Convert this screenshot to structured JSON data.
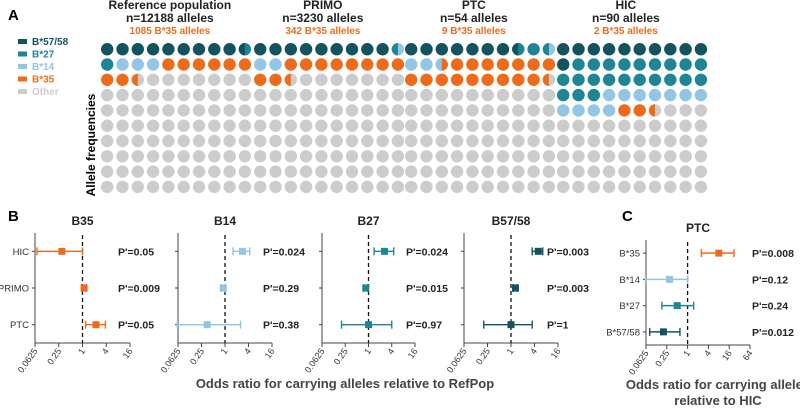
{
  "panel_a": {
    "letter": "A",
    "ylabel": "Allele frequencies",
    "legend": [
      {
        "label": "B*57/58",
        "color": "#13535f"
      },
      {
        "label": "B*27",
        "color": "#1d8596"
      },
      {
        "label": "B*14",
        "color": "#92c5e6"
      },
      {
        "label": "B*35",
        "color": "#ef6b1c"
      },
      {
        "label": "Other",
        "color": "#cccccc"
      }
    ],
    "grids": [
      {
        "title": "Reference population",
        "n": "n=12188 alleles",
        "b35": "1085 B*35 alleles",
        "counts": {
          "B*57/58": 9.5,
          "B*27": 1.5,
          "B*14": 3,
          "B*35": 8.9
        }
      },
      {
        "title": "PRIMO",
        "n": "n=3230 alleles",
        "b35": "342 B*35 alleles",
        "counts": {
          "B*57/58": 9,
          "B*27": 0.5,
          "B*14": 2.5,
          "B*35": 10.6
        }
      },
      {
        "title": "PTC",
        "n": "n=54 alleles",
        "b35": "9 B*35 alleles",
        "counts": {
          "B*57/58": 7.5,
          "B*27": 2,
          "B*14": 3,
          "B*35": 16.7
        }
      },
      {
        "title": "HIC",
        "n": "n=90 alleles",
        "b35": "2 B*35 alleles",
        "counts": {
          "B*57/58": 11,
          "B*27": 22,
          "B*14": 11,
          "B*35": 2.2
        }
      }
    ]
  },
  "panel_b": {
    "letter": "B",
    "xlabel": "Odds ratio for carrying alleles relative to RefPop"
  },
  "panel_c": {
    "letter": "C",
    "xlabel_line1": "Odds ratio for carrying alleles",
    "xlabel_line2": "relative to HIC"
  },
  "chart_data": [
    {
      "type": "scatter",
      "title": "B35",
      "categories": [
        "HIC",
        "PRIMO",
        "PTC"
      ],
      "x_scale": "log2",
      "xticks": [
        "0.0625",
        "0.25",
        "1",
        "4",
        "16"
      ],
      "xlim": [
        0.0625,
        16
      ],
      "color": "#ef6b1c",
      "series": [
        {
          "values": [
            0.3,
            1.1,
            2.2
          ],
          "ci_low": [
            0.07,
            0.95,
            1.2
          ],
          "ci_high": [
            1.0,
            1.25,
            3.8
          ]
        }
      ],
      "annotations": [
        "P'=0.05",
        "P'=0.009",
        "P'=0.05"
      ]
    },
    {
      "type": "scatter",
      "title": "B14",
      "categories": [
        "HIC",
        "PRIMO",
        "PTC"
      ],
      "x_scale": "log2",
      "xticks": [
        "0.0625",
        "0.25",
        "1",
        "4",
        "16"
      ],
      "xlim": [
        0.0625,
        16
      ],
      "color": "#92c5e6",
      "series": [
        {
          "values": [
            2.8,
            0.9,
            0.35
          ],
          "ci_low": [
            1.6,
            0.8,
            0.06
          ],
          "ci_high": [
            4.3,
            1.0,
            2.5
          ]
        }
      ],
      "annotations": [
        "P'=0.024",
        "P'=0.29",
        "P'=0.38"
      ]
    },
    {
      "type": "scatter",
      "title": "B27",
      "categories": [
        "HIC",
        "PRIMO",
        "PTC"
      ],
      "x_scale": "log2",
      "xticks": [
        "0.0625",
        "0.25",
        "1",
        "4",
        "16"
      ],
      "xlim": [
        0.0625,
        16
      ],
      "color": "#1d8596",
      "series": [
        {
          "values": [
            2.6,
            0.85,
            1.0
          ],
          "ci_low": [
            1.4,
            0.75,
            0.2
          ],
          "ci_high": [
            4.5,
            0.95,
            4.0
          ]
        }
      ],
      "annotations": [
        "P'=0.024",
        "P'=0.015",
        "P'=0.97"
      ]
    },
    {
      "type": "scatter",
      "title": "B57/58",
      "categories": [
        "HIC",
        "PRIMO",
        "PTC"
      ],
      "x_scale": "log2",
      "xticks": [
        "0.0625",
        "0.25",
        "1",
        "4",
        "16"
      ],
      "xlim": [
        0.0625,
        16
      ],
      "color": "#13535f",
      "series": [
        {
          "values": [
            5.0,
            1.3,
            1.0
          ],
          "ci_low": [
            3.5,
            1.15,
            0.2
          ],
          "ci_high": [
            6.5,
            1.45,
            3.5
          ]
        }
      ],
      "annotations": [
        "P'=0.003",
        "P'=0.003",
        "P'=1"
      ]
    },
    {
      "type": "scatter",
      "title": "PTC",
      "categories": [
        "B*35",
        "B*14",
        "B*27",
        "B*57/58"
      ],
      "x_scale": "log2",
      "xticks": [
        "0.0625",
        "0.25",
        "1",
        "4",
        "16",
        "64"
      ],
      "xlim": [
        0.0625,
        64
      ],
      "colors": [
        "#ef6b1c",
        "#92c5e6",
        "#1d8596",
        "#13535f"
      ],
      "series": [
        {
          "values": [
            8.0,
            0.3,
            0.5,
            0.2
          ],
          "ci_low": [
            2.5,
            0.06,
            0.18,
            0.08
          ],
          "ci_high": [
            22,
            1.0,
            1.5,
            0.6
          ]
        }
      ],
      "annotations": [
        "P'=0.008",
        "P'=0.12",
        "P'=0.24",
        "P'=0.012"
      ]
    }
  ]
}
